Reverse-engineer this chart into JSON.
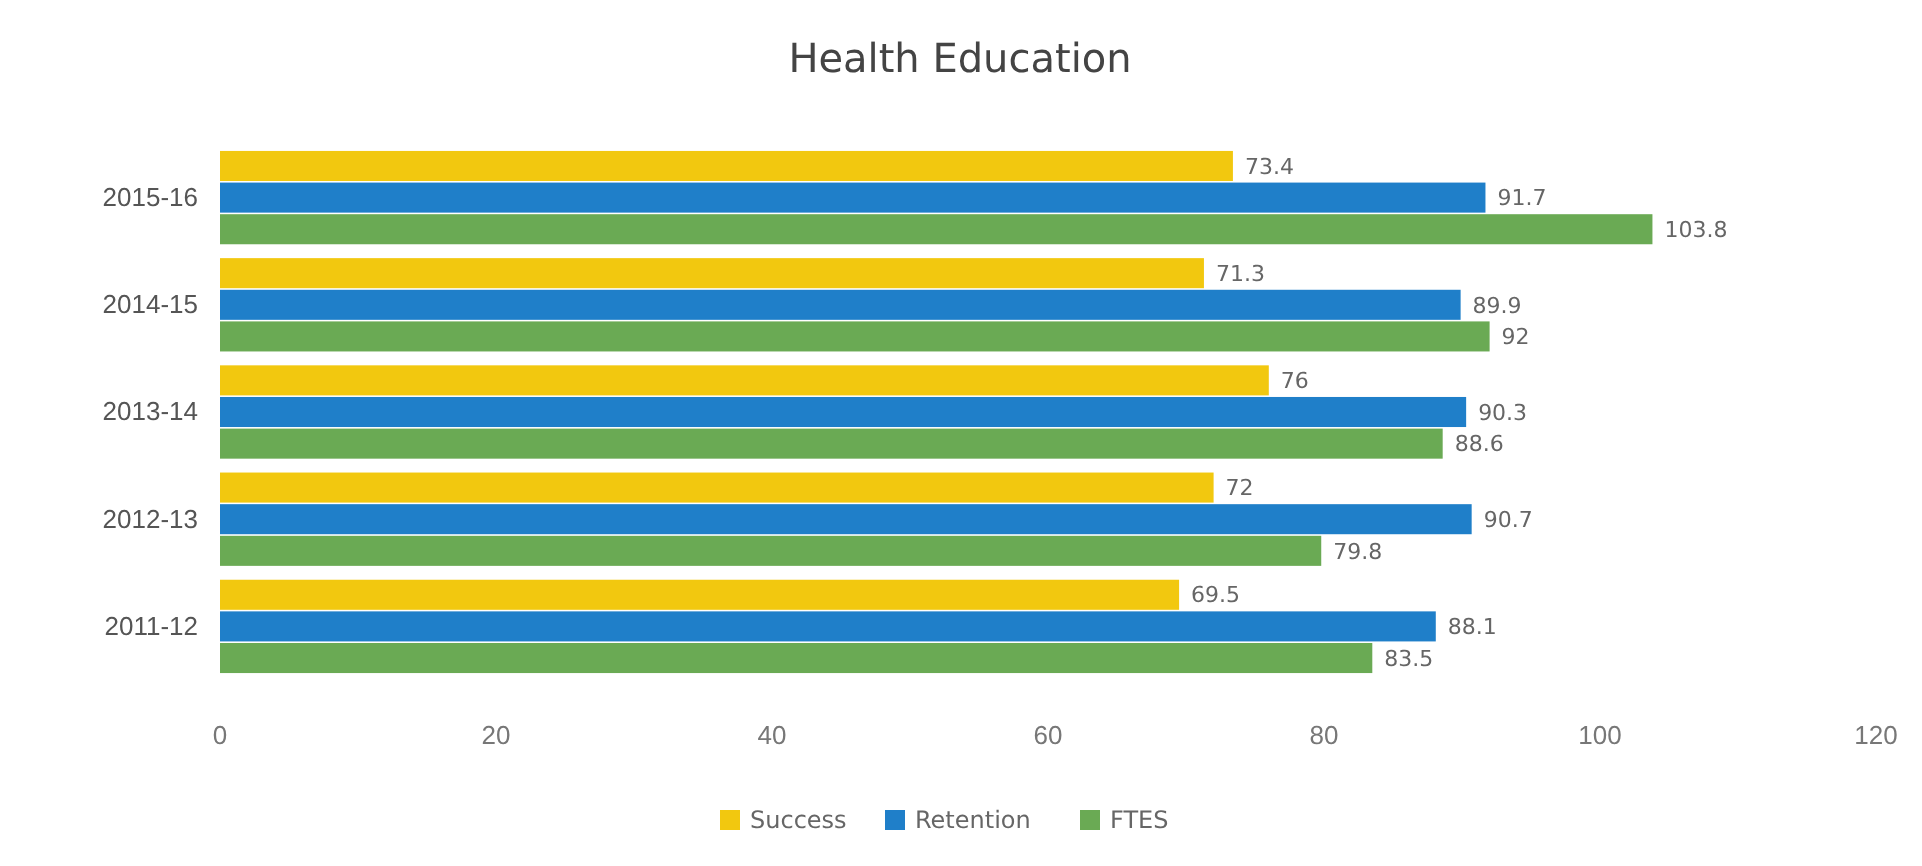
{
  "chart_data": {
    "type": "bar",
    "title": "Health Education",
    "orientation": "horizontal",
    "categories": [
      "2015-16",
      "2014-15",
      "2013-14",
      "2012-13",
      "2011-12"
    ],
    "series": [
      {
        "name": "Success",
        "color": "#f2c80f",
        "values": [
          73.4,
          71.3,
          76,
          72,
          69.5
        ]
      },
      {
        "name": "Retention",
        "color": "#1f7fc9",
        "values": [
          91.7,
          89.9,
          90.3,
          90.7,
          88.1
        ]
      },
      {
        "name": "FTES",
        "color": "#6aaa54",
        "values": [
          103.8,
          92,
          88.6,
          79.8,
          83.5
        ]
      }
    ],
    "xlim": [
      0,
      120
    ],
    "xticks": [
      0,
      20,
      40,
      60,
      80,
      100,
      120
    ],
    "data_labels": true,
    "legend": "bottom",
    "grid": false
  }
}
